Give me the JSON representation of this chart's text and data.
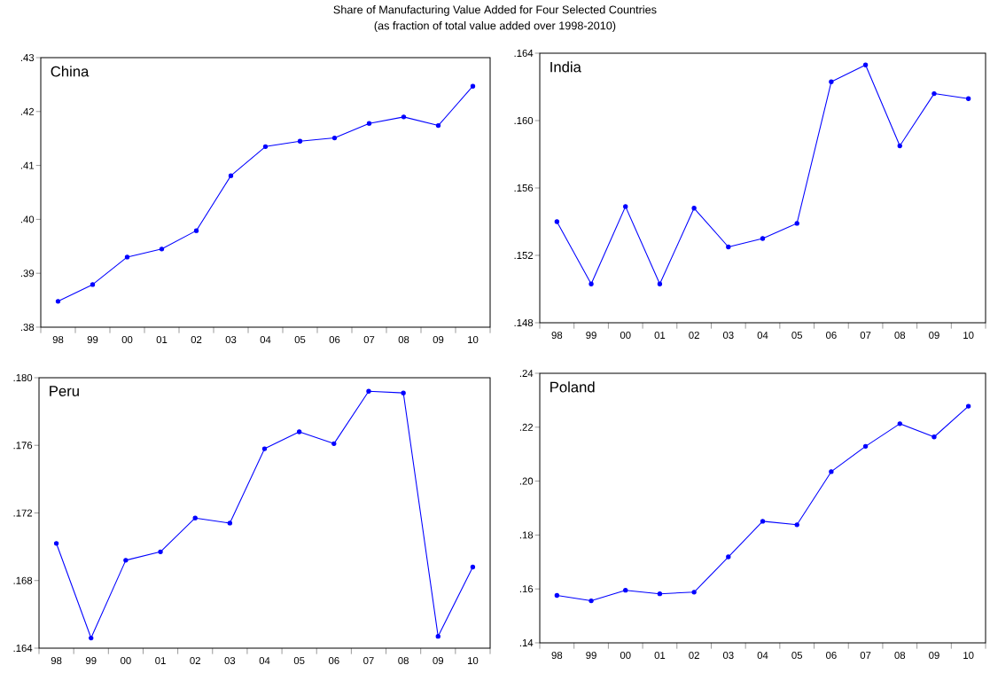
{
  "chart_data": [
    {
      "type": "line",
      "title": "China",
      "annotations": [
        "Share of Manufacturing Value Added for Four Selected Countries",
        "(as fraction of total value added over 1998-2010)"
      ],
      "categories": [
        "98",
        "99",
        "00",
        "01",
        "02",
        "03",
        "04",
        "05",
        "06",
        "07",
        "08",
        "09",
        "10"
      ],
      "series": [
        {
          "color": "#0000ff",
          "values": [
            0.3848,
            0.3879,
            0.393,
            0.3945,
            0.3979,
            0.4081,
            0.4135,
            0.4145,
            0.4151,
            0.4178,
            0.419,
            0.4174,
            0.4247
          ]
        }
      ],
      "ylim": [
        0.38,
        0.43
      ],
      "yticks": [
        {
          "value": 0.38,
          "label": ".38"
        },
        {
          "value": 0.39,
          "label": ".39"
        },
        {
          "value": 0.4,
          "label": ".40"
        },
        {
          "value": 0.41,
          "label": ".41"
        },
        {
          "value": 0.42,
          "label": ".42"
        },
        {
          "value": 0.43,
          "label": ".43"
        }
      ],
      "marker": "circle",
      "line_style": "solid"
    },
    {
      "type": "line",
      "title": "India",
      "categories": [
        "98",
        "99",
        "00",
        "01",
        "02",
        "03",
        "04",
        "05",
        "06",
        "07",
        "08",
        "09",
        "10"
      ],
      "series": [
        {
          "color": "#0000ff",
          "values": [
            0.154,
            0.1503,
            0.1549,
            0.1503,
            0.1548,
            0.1525,
            0.153,
            0.1539,
            0.1623,
            0.1633,
            0.1585,
            0.1616,
            0.1613
          ]
        }
      ],
      "ylim": [
        0.148,
        0.164
      ],
      "yticks": [
        {
          "value": 0.148,
          "label": ".148"
        },
        {
          "value": 0.152,
          "label": ".152"
        },
        {
          "value": 0.156,
          "label": ".156"
        },
        {
          "value": 0.16,
          "label": ".160"
        },
        {
          "value": 0.164,
          "label": ".164"
        }
      ],
      "marker": "circle",
      "line_style": "solid"
    },
    {
      "type": "line",
      "title": "Peru",
      "categories": [
        "98",
        "99",
        "00",
        "01",
        "02",
        "03",
        "04",
        "05",
        "06",
        "07",
        "08",
        "09",
        "10"
      ],
      "series": [
        {
          "color": "#0000ff",
          "values": [
            0.1702,
            0.1646,
            0.1692,
            0.1697,
            0.1717,
            0.1714,
            0.1758,
            0.1768,
            0.1761,
            0.1792,
            0.1791,
            0.1647,
            0.1688
          ]
        }
      ],
      "ylim": [
        0.164,
        0.18
      ],
      "yticks": [
        {
          "value": 0.164,
          "label": ".164"
        },
        {
          "value": 0.168,
          "label": ".168"
        },
        {
          "value": 0.172,
          "label": ".172"
        },
        {
          "value": 0.176,
          "label": ".176"
        },
        {
          "value": 0.18,
          "label": ".180"
        }
      ],
      "marker": "circle",
      "line_style": "solid"
    },
    {
      "type": "line",
      "title": "Poland",
      "categories": [
        "98",
        "99",
        "00",
        "01",
        "02",
        "03",
        "04",
        "05",
        "06",
        "07",
        "08",
        "09",
        "10"
      ],
      "series": [
        {
          "color": "#0000ff",
          "values": [
            0.1576,
            0.1556,
            0.1595,
            0.1582,
            0.1588,
            0.1719,
            0.1851,
            0.1838,
            0.2035,
            0.2129,
            0.2213,
            0.2164,
            0.2278
          ]
        }
      ],
      "ylim": [
        0.14,
        0.24
      ],
      "yticks": [
        {
          "value": 0.14,
          "label": ".14"
        },
        {
          "value": 0.16,
          "label": ".16"
        },
        {
          "value": 0.18,
          "label": ".18"
        },
        {
          "value": 0.2,
          "label": ".20"
        },
        {
          "value": 0.22,
          "label": ".22"
        },
        {
          "value": 0.24,
          "label": ".24"
        }
      ],
      "marker": "circle",
      "line_style": "solid"
    }
  ]
}
